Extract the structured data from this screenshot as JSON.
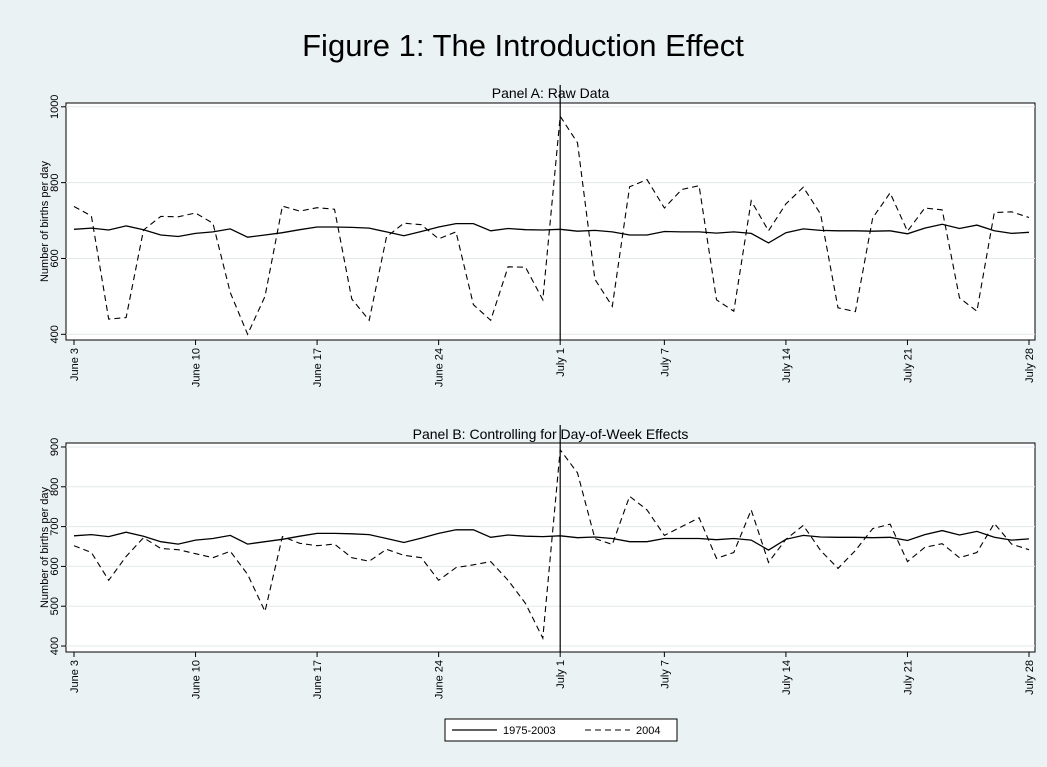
{
  "figure": {
    "title": "Figure 1: The Introduction Effect",
    "legend": [
      {
        "label": "1975-2003",
        "style": "solid"
      },
      {
        "label": "2004",
        "style": "dashed"
      }
    ],
    "colors": {
      "background": "#eaf2f3",
      "plot": "#ffffff",
      "line": "#000000"
    }
  },
  "chart_data": [
    {
      "type": "line",
      "title": "Panel A: Raw Data",
      "xlabel": "",
      "ylabel": "Number of births per day",
      "x": [
        "June 3",
        "June 4",
        "June 5",
        "June 6",
        "June 7",
        "June 8",
        "June 9",
        "June 10",
        "June 11",
        "June 12",
        "June 13",
        "June 14",
        "June 15",
        "June 16",
        "June 17",
        "June 18",
        "June 19",
        "June 20",
        "June 21",
        "June 22",
        "June 23",
        "June 24",
        "June 25",
        "June 26",
        "June 27",
        "June 28",
        "June 29",
        "June 30",
        "July 1",
        "July 2",
        "July 3",
        "July 4",
        "July 5",
        "July 6",
        "July 7",
        "July 8",
        "July 9",
        "July 10",
        "July 11",
        "July 12",
        "July 13",
        "July 14",
        "July 15",
        "July 16",
        "July 17",
        "July 18",
        "July 19",
        "July 20",
        "July 21",
        "July 22",
        "July 23",
        "July 24",
        "July 25",
        "July 26",
        "July 27",
        "July 28"
      ],
      "x_tick_labels": [
        "June 3",
        "June 10",
        "June 17",
        "June 24",
        "July 1",
        "July 7",
        "July 14",
        "July 21",
        "July 28"
      ],
      "y_ticks": [
        400,
        600,
        800,
        1000
      ],
      "ylim": [
        385,
        1010
      ],
      "grid": true,
      "vertical_line_at": "July 1",
      "series": [
        {
          "name": "1975-2003",
          "style": "solid",
          "values": [
            677,
            680,
            675,
            686,
            676,
            662,
            658,
            666,
            670,
            678,
            656,
            662,
            668,
            676,
            683,
            683,
            682,
            680,
            670,
            660,
            671,
            683,
            692,
            692,
            673,
            679,
            676,
            675,
            677,
            672,
            674,
            670,
            662,
            662,
            671,
            670,
            670,
            667,
            670,
            666,
            641,
            668,
            678,
            674,
            673,
            673,
            672,
            673,
            665,
            680,
            690,
            679,
            688,
            673,
            666,
            669
          ]
        },
        {
          "name": "2004",
          "style": "dashed",
          "values": [
            737,
            712,
            440,
            444,
            675,
            711,
            710,
            720,
            693,
            510,
            400,
            500,
            738,
            725,
            734,
            730,
            493,
            437,
            657,
            693,
            689,
            652,
            670,
            478,
            437,
            578,
            577,
            491,
            975,
            905,
            545,
            474,
            789,
            808,
            733,
            782,
            792,
            491,
            461,
            752,
            673,
            744,
            788,
            717,
            470,
            460,
            707,
            773,
            672,
            733,
            728,
            496,
            461,
            721,
            723,
            708
          ]
        }
      ]
    },
    {
      "type": "line",
      "title": "Panel B: Controlling for Day-of-Week Effects",
      "xlabel": "",
      "ylabel": "Number of births per day",
      "x": [
        "June 3",
        "June 4",
        "June 5",
        "June 6",
        "June 7",
        "June 8",
        "June 9",
        "June 10",
        "June 11",
        "June 12",
        "June 13",
        "June 14",
        "June 15",
        "June 16",
        "June 17",
        "June 18",
        "June 19",
        "June 20",
        "June 21",
        "June 22",
        "June 23",
        "June 24",
        "June 25",
        "June 26",
        "June 27",
        "June 28",
        "June 29",
        "June 30",
        "July 1",
        "July 2",
        "July 3",
        "July 4",
        "July 5",
        "July 6",
        "July 7",
        "July 8",
        "July 9",
        "July 10",
        "July 11",
        "July 12",
        "July 13",
        "July 14",
        "July 15",
        "July 16",
        "July 17",
        "July 18",
        "July 19",
        "July 20",
        "July 21",
        "July 22",
        "July 23",
        "July 24",
        "July 25",
        "July 26",
        "July 27",
        "July 28"
      ],
      "x_tick_labels": [
        "June 3",
        "June 10",
        "June 17",
        "June 24",
        "July 1",
        "July 7",
        "July 14",
        "July 21",
        "July 28"
      ],
      "y_ticks": [
        400,
        500,
        600,
        700,
        800,
        900
      ],
      "ylim": [
        385,
        910
      ],
      "grid": true,
      "vertical_line_at": "July 1",
      "series": [
        {
          "name": "1975-2003",
          "style": "solid",
          "values": [
            677,
            680,
            675,
            686,
            676,
            662,
            656,
            666,
            670,
            678,
            656,
            662,
            668,
            676,
            683,
            683,
            682,
            680,
            670,
            660,
            671,
            683,
            692,
            692,
            673,
            679,
            676,
            675,
            677,
            672,
            674,
            670,
            662,
            662,
            670,
            670,
            670,
            667,
            670,
            666,
            641,
            668,
            678,
            674,
            673,
            673,
            672,
            673,
            665,
            680,
            690,
            679,
            688,
            673,
            666,
            669
          ]
        },
        {
          "name": "2004",
          "style": "dashed",
          "values": [
            652,
            635,
            565,
            625,
            672,
            645,
            642,
            632,
            622,
            638,
            580,
            487,
            675,
            658,
            652,
            656,
            622,
            613,
            643,
            628,
            622,
            565,
            597,
            604,
            612,
            565,
            507,
            420,
            893,
            835,
            670,
            655,
            776,
            742,
            678,
            700,
            722,
            620,
            635,
            742,
            610,
            668,
            703,
            640,
            595,
            640,
            695,
            706,
            612,
            648,
            657,
            622,
            635,
            708,
            656,
            642
          ]
        }
      ]
    }
  ]
}
